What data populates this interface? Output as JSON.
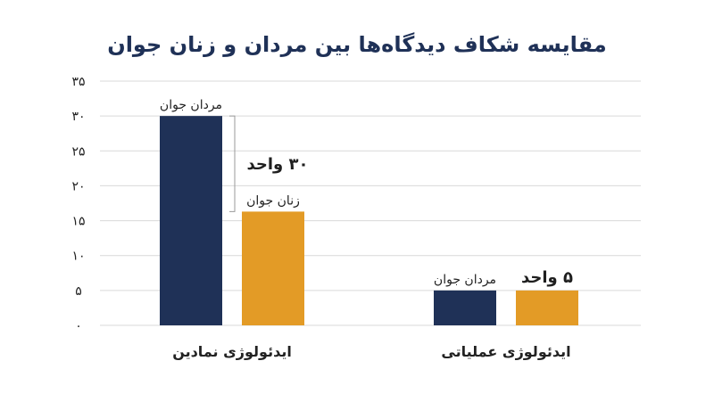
{
  "chart_data": {
    "type": "bar",
    "title": "مقایسه شکاف دیدگاه‌ها بین مردان و زنان جوان",
    "xlabel": "",
    "ylabel": "",
    "ylim": [
      0,
      35
    ],
    "yticks": [
      0,
      5,
      10,
      15,
      20,
      25,
      30,
      35
    ],
    "ytick_labels": [
      "۰",
      "۵",
      "۱۰",
      "۱۵",
      "۲۰",
      "۲۵",
      "۳۰",
      "۳۵"
    ],
    "grid": true,
    "legend": "none",
    "categories": [
      "ایدئولوژی نمادین",
      "ایدئولوژی عملیاتی"
    ],
    "series": [
      {
        "name": "مردان جوان",
        "color": "#1f3157",
        "values": [
          30,
          5
        ],
        "labels": [
          "مردان جوان",
          "مردان جوان"
        ]
      },
      {
        "name": "زنان جوان",
        "color": "#e39b26",
        "values": [
          16.3,
          5
        ],
        "labels": [
          "زنان جوان",
          ""
        ]
      }
    ],
    "annotations": [
      {
        "category_index": 0,
        "text": "۳۰ واحد",
        "bracket": true
      },
      {
        "category_index": 1,
        "text": "۵ واحد",
        "bracket": false
      }
    ]
  }
}
